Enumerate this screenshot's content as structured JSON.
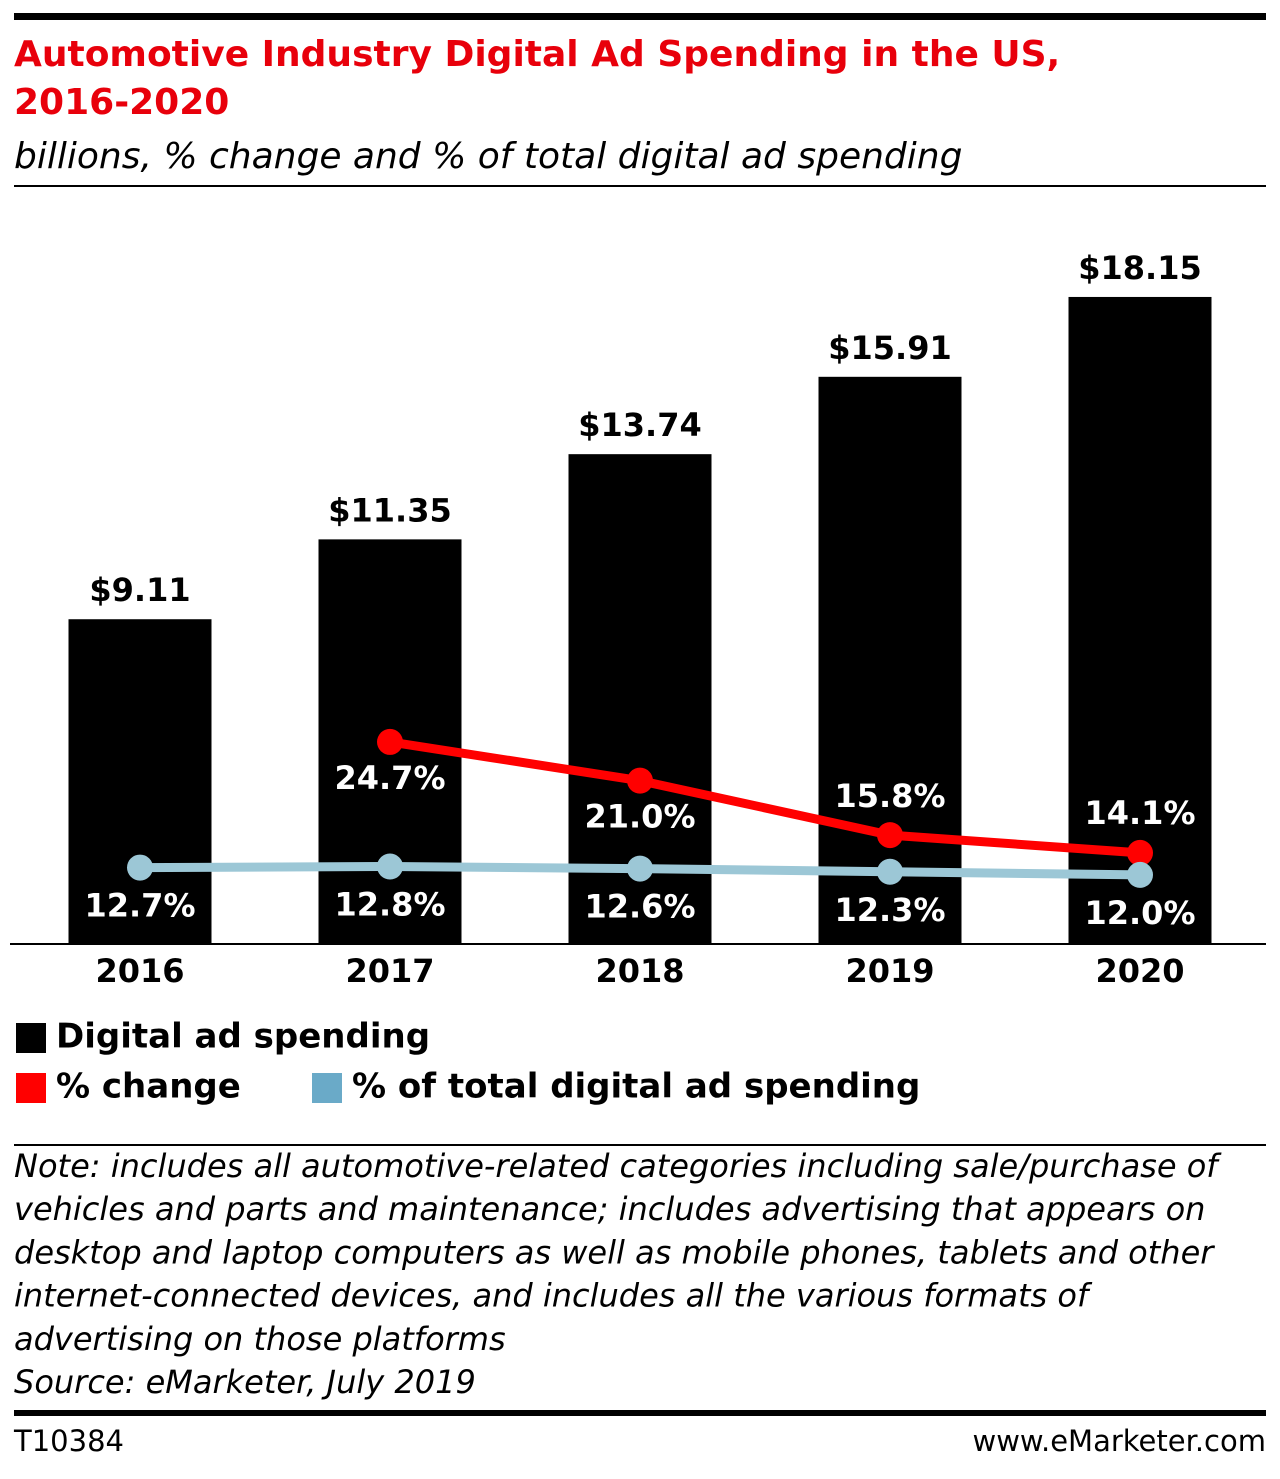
{
  "chart_data": {
    "type": "bar",
    "title": [
      "Automotive Industry Digital Ad Spending in the US,",
      "2016-2020"
    ],
    "subtitle": "billions, % change and % of total digital ad spending",
    "categories": [
      "2016",
      "2017",
      "2018",
      "2019",
      "2020"
    ],
    "ylim": [
      0,
      20
    ],
    "y2lim": [
      5.4,
      73.5
    ],
    "series": [
      {
        "name": "Digital ad spending",
        "color": "#000000",
        "values": [
          9.11,
          11.35,
          13.74,
          15.91,
          18.15
        ],
        "value_labels": [
          "$9.11",
          "$11.35",
          "$13.74",
          "$15.91",
          "$18.15"
        ]
      },
      {
        "name": "% change",
        "type": "line",
        "axis": "y2",
        "color": "#ff0000",
        "values": [
          null,
          24.7,
          21.0,
          15.8,
          14.1
        ],
        "value_labels": [
          null,
          "24.7%",
          "21.0%",
          "15.8%",
          "14.1%"
        ]
      },
      {
        "name": "% of total digital ad spending",
        "type": "line",
        "axis": "y2",
        "color": "#9cc7d6",
        "values": [
          12.7,
          12.8,
          12.6,
          12.3,
          12.0
        ],
        "value_labels": [
          "12.7%",
          "12.8%",
          "12.6%",
          "12.3%",
          "12.0%"
        ]
      }
    ],
    "note": [
      "Note: includes all automotive-related categories including sale/purchase of",
      "vehicles and parts and maintenance; includes advertising that appears on",
      "desktop and laptop computers as well as mobile phones, tablets and other",
      "internet-connected devices, and includes all the various formats of",
      "advertising on those platforms"
    ],
    "source": "Source: eMarketer, July 2019",
    "chart_id": "T10384",
    "site": "www.eMarketer.com"
  }
}
